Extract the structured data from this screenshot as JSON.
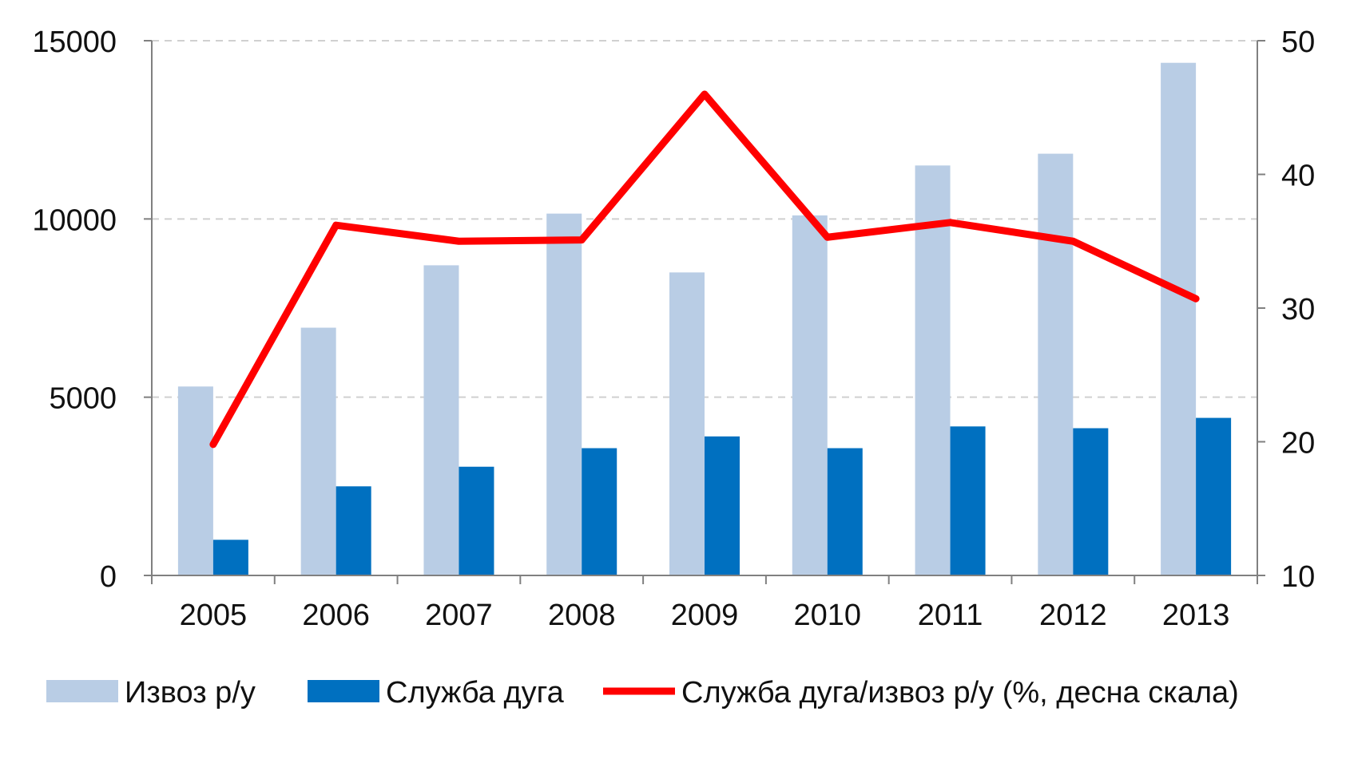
{
  "chart_data": {
    "type": "bar",
    "categories": [
      "2005",
      "2006",
      "2007",
      "2008",
      "2009",
      "2010",
      "2011",
      "2012",
      "2013"
    ],
    "series": [
      {
        "name": "Извоз р/у",
        "type": "bar",
        "axis": "left",
        "color": "#B9CDE5",
        "values": [
          5300,
          6950,
          8700,
          10150,
          8500,
          10100,
          11500,
          11830,
          14380
        ]
      },
      {
        "name": "Служба дуга",
        "type": "bar",
        "axis": "left",
        "color": "#0070C0",
        "values": [
          1000,
          2500,
          3050,
          3570,
          3900,
          3570,
          4180,
          4130,
          4420
        ]
      },
      {
        "name": "Служба дуга/извоз р/у (%, десна скала)",
        "type": "line",
        "axis": "right",
        "color": "#FF0000",
        "values": [
          19.8,
          36.2,
          35.0,
          35.1,
          46.0,
          35.3,
          36.4,
          35.0,
          30.7
        ]
      }
    ],
    "y_left": {
      "ylim": [
        0,
        15000
      ],
      "ticks": [
        "0",
        "5000",
        "10000",
        "15000"
      ],
      "tick_values": [
        0,
        5000,
        10000,
        15000
      ]
    },
    "y_right": {
      "ylim": [
        10,
        50
      ],
      "ticks": [
        "10",
        "20",
        "30",
        "40",
        "50"
      ],
      "tick_values": [
        10,
        20,
        30,
        40,
        50
      ]
    },
    "grid": "horizontal dashed",
    "legend_position": "bottom"
  }
}
